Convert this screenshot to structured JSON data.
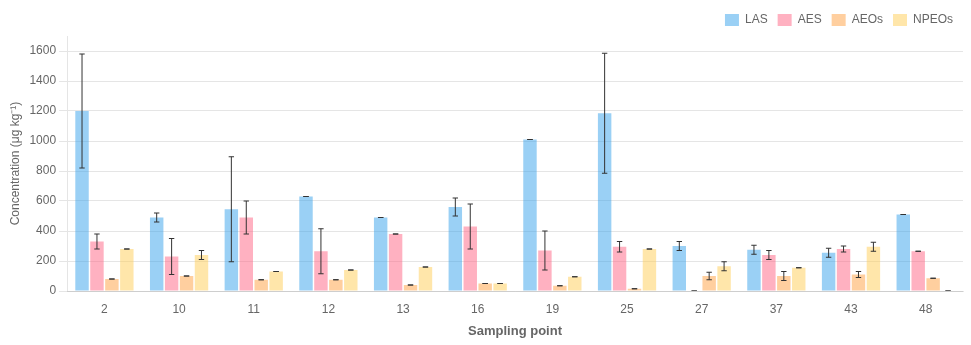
{
  "chart_data": {
    "type": "bar",
    "categories": [
      "2",
      "10",
      "11",
      "12",
      "13",
      "16",
      "19",
      "25",
      "27",
      "37",
      "43",
      "48"
    ],
    "series": [
      {
        "name": "LAS",
        "values": [
          1200,
          490,
          545,
          630,
          490,
          560,
          1010,
          1185,
          300,
          275,
          255,
          510
        ],
        "errors": [
          380,
          30,
          350,
          0,
          0,
          60,
          0,
          400,
          30,
          30,
          30,
          0
        ]
      },
      {
        "name": "AES",
        "values": [
          330,
          230,
          490,
          265,
          380,
          430,
          270,
          295,
          0,
          240,
          280,
          265
        ],
        "errors": [
          50,
          120,
          110,
          150,
          0,
          150,
          130,
          35,
          0,
          30,
          20,
          0
        ]
      },
      {
        "name": "AEOs",
        "values": [
          80,
          100,
          75,
          75,
          40,
          50,
          35,
          15,
          100,
          100,
          110,
          85
        ],
        "errors": [
          0,
          0,
          0,
          0,
          0,
          0,
          0,
          0,
          25,
          30,
          20,
          0
        ]
      },
      {
        "name": "NPEOs",
        "values": [
          280,
          240,
          130,
          140,
          160,
          50,
          95,
          280,
          165,
          155,
          295,
          0
        ],
        "errors": [
          0,
          30,
          0,
          0,
          0,
          0,
          0,
          0,
          30,
          0,
          30,
          0
        ]
      }
    ],
    "xlabel": "Sampling point",
    "ylabel": "Concentration (μg kg⁻¹)",
    "ylim": [
      0,
      1700
    ],
    "yticks": [
      0,
      200,
      400,
      600,
      800,
      1000,
      1200,
      1400,
      1600
    ],
    "grid": true,
    "legend": "upper right"
  }
}
